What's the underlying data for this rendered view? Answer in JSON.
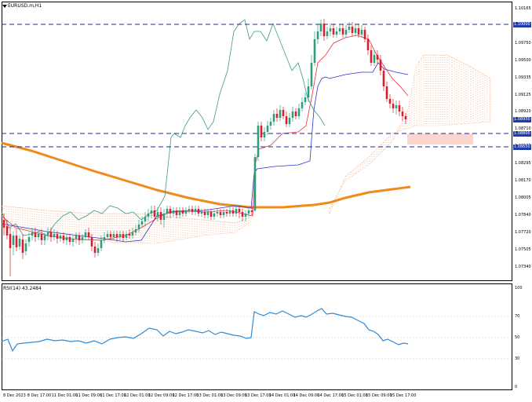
{
  "chart": {
    "symbol_label": "EURUSD,m,H1",
    "price_axis": [
      "1.10165",
      "1.09960",
      "1.09750",
      "1.09500",
      "1.09335",
      "1.09125",
      "1.08920",
      "1.08710",
      "1.08505",
      "1.08295",
      "1.08170",
      "1.08005",
      "1.07840",
      "1.07720",
      "1.07505",
      "1.07340"
    ],
    "price_tags": [
      {
        "label": "1.10000",
        "color": "#1f3ca8"
      },
      {
        "label": "1.08950",
        "color": "#1f3ca8"
      },
      {
        "label": "1.08800",
        "color": "#1f3ca8"
      },
      {
        "label": "1.08650",
        "color": "#1f3ca8"
      }
    ],
    "time_axis": [
      "8 Dec 2023",
      "8 Dec 17:00",
      "11 Dec 01:00",
      "11 Dec 09:00",
      "11 Dec 17:00",
      "12 Dec 01:00",
      "12 Dec 09:00",
      "12 Dec 17:00",
      "13 Dec 01:00",
      "13 Dec 09:00",
      "13 Dec 17:00",
      "14 Dec 01:00",
      "14 Dec 09:00",
      "14 Dec 17:00",
      "15 Dec 01:00",
      "15 Dec 09:00",
      "15 Dec 17:00"
    ]
  },
  "rsi": {
    "label": "RSI(14) 43.2484",
    "axis": [
      "100",
      "70",
      "50",
      "30",
      "0"
    ]
  },
  "colors": {
    "bull": "#2e9e7c",
    "bear": "#d61f2c",
    "tenkan": "#e8303a",
    "kijun": "#2b35c8",
    "chikou": "#3a9a86",
    "ma": "#f08a1a",
    "cloud": "#f3a070",
    "hline": "#1e2a8c",
    "rsi": "#2e8bd6",
    "zone": "#f9c9c0"
  },
  "chart_data": {
    "type": "candlestick",
    "title": "EURUSD,m,H1",
    "horizontal_levels": [
      1.1,
      1.088,
      1.0865
    ],
    "last_price": 1.0895,
    "rsi_value": 43.2484,
    "rsi_levels": [
      70,
      50,
      30
    ]
  }
}
